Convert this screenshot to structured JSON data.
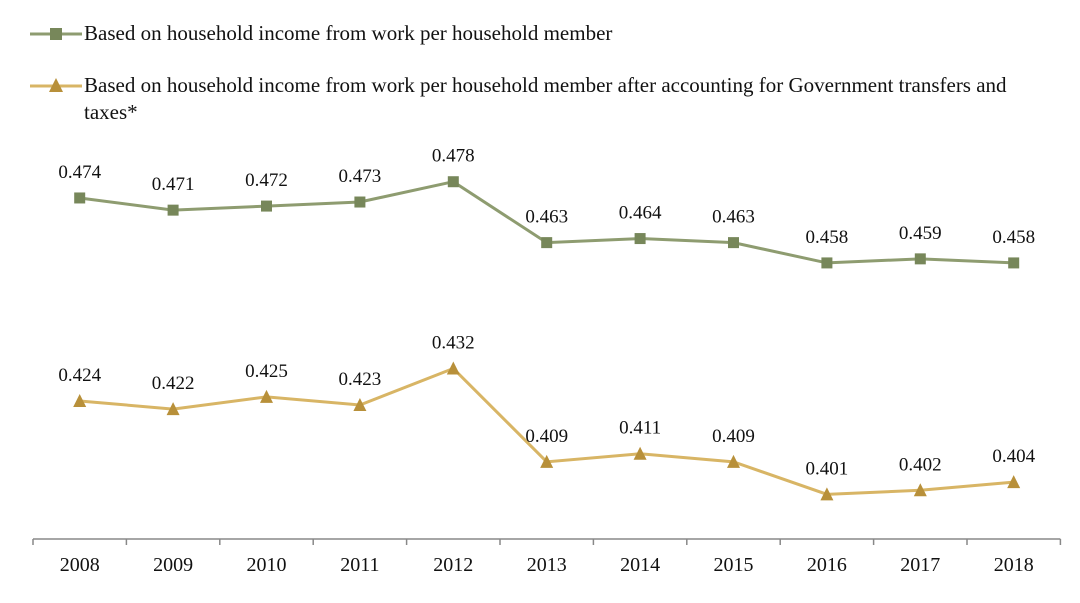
{
  "chart_data": {
    "type": "line",
    "title": "",
    "xlabel": "",
    "ylabel": "",
    "x": [
      "2008",
      "2009",
      "2010",
      "2011",
      "2012",
      "2013",
      "2014",
      "2015",
      "2016",
      "2017",
      "2018"
    ],
    "ylim": [
      0.39,
      0.49
    ],
    "grid": false,
    "legend_position": "top-left",
    "series": [
      {
        "name": "Based on household income from work per household member",
        "marker": "square",
        "color": "#8e9c70",
        "marker_color": "#77875a",
        "values": [
          0.474,
          0.471,
          0.472,
          0.473,
          0.478,
          0.463,
          0.464,
          0.463,
          0.458,
          0.459,
          0.458
        ],
        "labels": [
          "0.474",
          "0.471",
          "0.472",
          "0.473",
          "0.478",
          "0.463",
          "0.464",
          "0.463",
          "0.458",
          "0.459",
          "0.458"
        ]
      },
      {
        "name": "Based on household income from work per household member after accounting for Government transfers and taxes*",
        "marker": "triangle",
        "color": "#d8b565",
        "marker_color": "#b8903a",
        "values": [
          0.424,
          0.422,
          0.425,
          0.423,
          0.432,
          0.409,
          0.411,
          0.409,
          0.401,
          0.402,
          0.404
        ],
        "labels": [
          "0.424",
          "0.422",
          "0.425",
          "0.423",
          "0.432",
          "0.409",
          "0.411",
          "0.409",
          "0.401",
          "0.402",
          "0.404"
        ]
      }
    ]
  }
}
